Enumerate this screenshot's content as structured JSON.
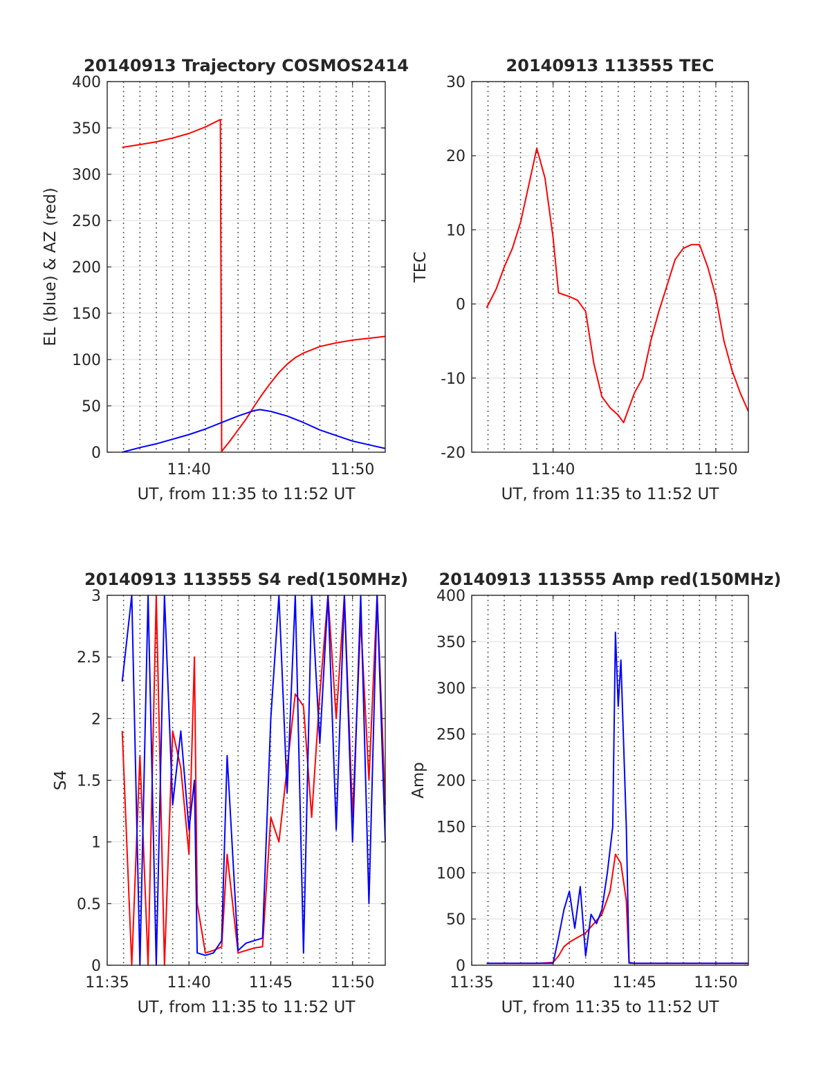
{
  "figure": {
    "background": "#ffffff",
    "grid": "on (dotted vertical at every minute, solid horizontal at y ticks)",
    "colors": {
      "red": "#ff0000",
      "blue": "#0000ff",
      "axis": "#262626"
    }
  },
  "chart_data": [
    {
      "type": "line",
      "title": "20140913 Trajectory COSMOS2414",
      "xlabel": "UT, from 11:35 to 11:52 UT",
      "ylabel": "EL (blue) & AZ (red)",
      "xlim": [
        "11:35",
        "11:52"
      ],
      "ylim": [
        0,
        400
      ],
      "xticks": [
        "11:40",
        "11:50"
      ],
      "yticks": [
        0,
        50,
        100,
        150,
        200,
        250,
        300,
        350,
        400
      ],
      "series": [
        {
          "color": "#ff0000",
          "x": [
            "11:35:55",
            "11:37:00",
            "11:38:00",
            "11:39:00",
            "11:40:00",
            "11:41:00",
            "11:41:55",
            "11:42:00",
            "11:42:30",
            "11:43:00",
            "11:43:30",
            "11:44:00",
            "11:44:30",
            "11:45:00",
            "11:45:30",
            "11:46:00",
            "11:46:30",
            "11:47:00",
            "11:48:00",
            "11:49:00",
            "11:50:00",
            "11:51:00",
            "11:52:00"
          ],
          "values": [
            329,
            332,
            335,
            339,
            344,
            351,
            359,
            1,
            12,
            24,
            36,
            50,
            63,
            75,
            86,
            95,
            102,
            107,
            114,
            118,
            121,
            123,
            125
          ]
        },
        {
          "color": "#0000ff",
          "x": [
            "11:35:55",
            "11:37:00",
            "11:38:00",
            "11:39:00",
            "11:40:00",
            "11:41:00",
            "11:42:00",
            "11:43:00",
            "11:44:00",
            "11:44:20",
            "11:45:00",
            "11:46:00",
            "11:47:00",
            "11:48:00",
            "11:49:00",
            "11:50:00",
            "11:51:00",
            "11:52:00"
          ],
          "values": [
            0,
            5,
            9,
            14,
            19,
            25,
            32,
            39,
            45,
            46,
            44,
            39,
            32,
            24,
            18,
            12,
            8,
            4
          ]
        }
      ]
    },
    {
      "type": "line",
      "title": "20140913 113555 TEC",
      "xlabel": "UT, from 11:35 to 11:52 UT",
      "ylabel": "TEC",
      "xlim": [
        "11:35",
        "11:52"
      ],
      "ylim": [
        -20,
        30
      ],
      "xticks": [
        "11:40",
        "11:50"
      ],
      "yticks": [
        -20,
        -10,
        0,
        10,
        20,
        30
      ],
      "series": [
        {
          "color": "#ff0000",
          "x": [
            "11:35:55",
            "11:36:30",
            "11:37:00",
            "11:37:30",
            "11:38:00",
            "11:38:30",
            "11:39:00",
            "11:39:30",
            "11:40:00",
            "11:40:20",
            "11:41:00",
            "11:41:30",
            "11:42:00",
            "11:42:30",
            "11:43:00",
            "11:43:30",
            "11:44:00",
            "11:44:20",
            "11:45:00",
            "11:45:30",
            "11:46:00",
            "11:46:30",
            "11:47:00",
            "11:47:30",
            "11:48:00",
            "11:48:30",
            "11:49:00",
            "11:49:30",
            "11:50:00",
            "11:50:30",
            "11:51:00",
            "11:51:30",
            "11:52:00"
          ],
          "values": [
            -0.5,
            2,
            5,
            7.5,
            11,
            16,
            21,
            17,
            9,
            1.5,
            1,
            0.5,
            -1,
            -8,
            -12.5,
            -14,
            -15,
            -16,
            -12,
            -10,
            -5,
            -1,
            2.5,
            6,
            7.5,
            8,
            8,
            5,
            1,
            -5,
            -9,
            -12,
            -14.5
          ]
        }
      ]
    },
    {
      "type": "line",
      "title": "20140913 113555 S4 red(150MHz)",
      "xlabel": "UT, from 11:35 to 11:52 UT",
      "ylabel": "S4",
      "xlim": [
        "11:35",
        "11:52"
      ],
      "ylim": [
        0,
        3
      ],
      "xticks": [
        "11:35",
        "11:40",
        "11:45",
        "11:50"
      ],
      "yticks": [
        0,
        0.5,
        1,
        1.5,
        2,
        2.5,
        3
      ],
      "series": [
        {
          "color": "#ff0000",
          "x": [
            "11:35:55",
            "11:36:30",
            "11:37:00",
            "11:37:30",
            "11:38:00",
            "11:38:30",
            "11:39:00",
            "11:39:30",
            "11:40:00",
            "11:40:20",
            "11:40:30",
            "11:41:00",
            "11:41:30",
            "11:42:00",
            "11:42:20",
            "11:43:00",
            "11:43:30",
            "11:44:00",
            "11:44:30",
            "11:45:00",
            "11:45:30",
            "11:46:00",
            "11:46:30",
            "11:47:00",
            "11:47:30",
            "11:48:00",
            "11:48:30",
            "11:49:00",
            "11:49:30",
            "11:50:00",
            "11:50:30",
            "11:51:00",
            "11:51:30",
            "11:52:00"
          ],
          "values": [
            1.9,
            0.0,
            1.7,
            0.0,
            3.0,
            0.0,
            1.9,
            1.6,
            0.9,
            2.5,
            0.5,
            0.1,
            0.12,
            0.15,
            0.9,
            0.1,
            0.12,
            0.14,
            0.15,
            1.2,
            1.0,
            1.6,
            2.2,
            2.1,
            1.2,
            2.2,
            3.0,
            2.0,
            3.0,
            1.2,
            2.8,
            1.5,
            3.0,
            1.3
          ]
        },
        {
          "color": "#0000ff",
          "x": [
            "11:35:55",
            "11:36:30",
            "11:37:00",
            "11:37:30",
            "11:38:00",
            "11:38:30",
            "11:39:00",
            "11:39:30",
            "11:40:00",
            "11:40:20",
            "11:40:30",
            "11:41:00",
            "11:41:30",
            "11:42:00",
            "11:42:20",
            "11:43:00",
            "11:43:30",
            "11:44:00",
            "11:44:30",
            "11:45:00",
            "11:45:30",
            "11:46:00",
            "11:46:30",
            "11:47:00",
            "11:47:30",
            "11:48:00",
            "11:48:30",
            "11:49:00",
            "11:49:30",
            "11:50:00",
            "11:50:30",
            "11:51:00",
            "11:51:30",
            "11:52:00"
          ],
          "values": [
            2.3,
            3.0,
            0.0,
            3.0,
            0.0,
            3.0,
            1.3,
            1.9,
            1.1,
            1.5,
            0.1,
            0.08,
            0.1,
            0.2,
            1.7,
            0.12,
            0.18,
            0.2,
            0.22,
            2.0,
            3.0,
            1.4,
            3.0,
            0.1,
            3.0,
            1.8,
            3.0,
            1.1,
            3.0,
            1.0,
            3.0,
            0.5,
            3.0,
            1.0
          ]
        }
      ]
    },
    {
      "type": "line",
      "title": "20140913 113555 Amp red(150MHz)",
      "xlabel": "UT, from 11:35 to 11:52 UT",
      "ylabel": "Amp",
      "xlim": [
        "11:35",
        "11:52"
      ],
      "ylim": [
        0,
        400
      ],
      "xticks": [
        "11:35",
        "11:40",
        "11:45",
        "11:50"
      ],
      "yticks": [
        0,
        50,
        100,
        150,
        200,
        250,
        300,
        350,
        400
      ],
      "series": [
        {
          "color": "#ff0000",
          "x": [
            "11:35:55",
            "11:37:00",
            "11:38:00",
            "11:39:00",
            "11:40:00",
            "11:40:20",
            "11:40:40",
            "11:41:00",
            "11:41:30",
            "11:42:00",
            "11:42:30",
            "11:43:00",
            "11:43:30",
            "11:43:50",
            "11:44:10",
            "11:44:30",
            "11:44:40",
            "11:45:00",
            "11:46:00",
            "11:48:00",
            "11:50:00",
            "11:52:00"
          ],
          "values": [
            2,
            2,
            2,
            2,
            3,
            10,
            20,
            25,
            30,
            35,
            45,
            55,
            80,
            120,
            110,
            70,
            2,
            2,
            2,
            2,
            2,
            2
          ]
        },
        {
          "color": "#0000ff",
          "x": [
            "11:35:55",
            "11:37:00",
            "11:38:00",
            "11:39:00",
            "11:40:00",
            "11:40:20",
            "11:40:40",
            "11:41:00",
            "11:41:20",
            "11:41:40",
            "11:42:00",
            "11:42:20",
            "11:42:40",
            "11:43:00",
            "11:43:20",
            "11:43:40",
            "11:43:50",
            "11:44:00",
            "11:44:10",
            "11:44:30",
            "11:44:40",
            "11:45:00",
            "11:46:00",
            "11:48:00",
            "11:50:00",
            "11:52:00"
          ],
          "values": [
            2,
            2,
            2,
            2,
            2,
            30,
            60,
            80,
            40,
            85,
            10,
            55,
            45,
            60,
            100,
            150,
            360,
            280,
            330,
            150,
            3,
            2,
            2,
            2,
            2,
            2
          ]
        }
      ]
    }
  ]
}
